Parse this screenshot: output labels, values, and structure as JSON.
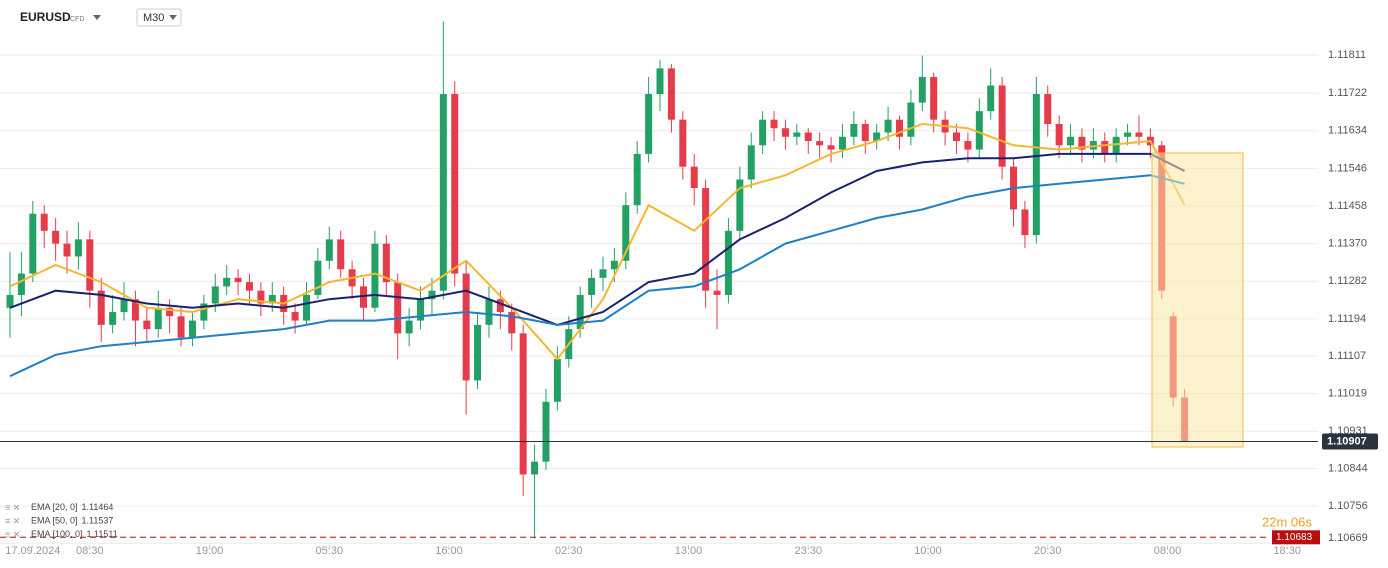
{
  "chart_data": {
    "type": "candlestick",
    "symbol": "EURUSD",
    "instrument": "CFD",
    "timeframe": "M30",
    "ylim": [
      1.10665,
      1.1194
    ],
    "xlim": [
      -0.877,
      114.7
    ],
    "yticks": [
      {
        "value": 1.10669,
        "label": "1.10669"
      },
      1.10756,
      1.10844,
      {
        "value": 1.10931,
        "label": "1.10931"
      },
      1.11019,
      1.11107,
      1.11194,
      1.11282,
      {
        "value": 1.1137,
        "label": "1.11370"
      },
      1.11458,
      1.11546,
      1.11634,
      1.11722,
      1.11811
    ],
    "xticks": [
      {
        "value": 2,
        "label": "17.09.2024"
      },
      {
        "value": 7,
        "label": "08:30"
      },
      {
        "value": 17.5,
        "label": "19:00"
      },
      {
        "value": 28,
        "label": "05:30"
      },
      {
        "value": 38.5,
        "label": "16:00"
      },
      {
        "value": 49,
        "label": "02:30"
      },
      {
        "value": 59.5,
        "label": "13:00"
      },
      {
        "value": 70,
        "label": "23:30"
      },
      {
        "value": 80.5,
        "label": "10:00"
      },
      {
        "value": 91,
        "label": "20:30"
      },
      {
        "value": 101.5,
        "label": "08:00"
      },
      {
        "value": 112,
        "label": "18:30"
      }
    ],
    "grid": true,
    "up_color": "#23a064",
    "down_color": "#e53b4b",
    "candles": [
      [
        1.1122,
        1.1135,
        1.1115,
        1.1125
      ],
      [
        1.1125,
        1.1135,
        1.112,
        1.113
      ],
      [
        1.113,
        1.1147,
        1.1128,
        1.1144
      ],
      [
        1.1144,
        1.1146,
        1.1136,
        1.114
      ],
      [
        1.114,
        1.1143,
        1.1133,
        1.1137
      ],
      [
        1.1137,
        1.114,
        1.113,
        1.1134
      ],
      [
        1.1134,
        1.1142,
        1.1131,
        1.1138
      ],
      [
        1.1138,
        1.114,
        1.1122,
        1.1126
      ],
      [
        1.1126,
        1.1129,
        1.1114,
        1.1118
      ],
      [
        1.1118,
        1.1125,
        1.1116,
        1.1121
      ],
      [
        1.1121,
        1.1128,
        1.1119,
        1.1124
      ],
      [
        1.1124,
        1.1126,
        1.1113,
        1.1119
      ],
      [
        1.1119,
        1.1122,
        1.1114,
        1.1117
      ],
      [
        1.1117,
        1.1126,
        1.1115,
        1.1122
      ],
      [
        1.1122,
        1.1124,
        1.1116,
        1.112
      ],
      [
        1.112,
        1.1122,
        1.1113,
        1.1115
      ],
      [
        1.1115,
        1.1121,
        1.1113,
        1.1119
      ],
      [
        1.1119,
        1.1125,
        1.1117,
        1.1123
      ],
      [
        1.1123,
        1.113,
        1.1121,
        1.1127
      ],
      [
        1.1127,
        1.1132,
        1.1125,
        1.1129
      ],
      [
        1.1129,
        1.1131,
        1.1125,
        1.1128
      ],
      [
        1.1128,
        1.113,
        1.1123,
        1.1126
      ],
      [
        1.1126,
        1.1128,
        1.112,
        1.1123
      ],
      [
        1.1123,
        1.1128,
        1.1121,
        1.1125
      ],
      [
        1.1125,
        1.1127,
        1.1118,
        1.1121
      ],
      [
        1.1121,
        1.1123,
        1.1116,
        1.1119
      ],
      [
        1.1119,
        1.1128,
        1.1118,
        1.1125
      ],
      [
        1.1125,
        1.1136,
        1.1124,
        1.1133
      ],
      [
        1.1133,
        1.1141,
        1.1131,
        1.1138
      ],
      [
        1.1138,
        1.114,
        1.1129,
        1.1131
      ],
      [
        1.1131,
        1.1133,
        1.1124,
        1.1127
      ],
      [
        1.1127,
        1.1129,
        1.1119,
        1.1122
      ],
      [
        1.1122,
        1.114,
        1.1121,
        1.1137
      ],
      [
        1.1137,
        1.1139,
        1.1125,
        1.1128
      ],
      [
        1.1128,
        1.113,
        1.111,
        1.1116
      ],
      [
        1.1116,
        1.1122,
        1.1113,
        1.1119
      ],
      [
        1.1119,
        1.1127,
        1.1117,
        1.1124
      ],
      [
        1.1124,
        1.1129,
        1.112,
        1.1126
      ],
      [
        1.1126,
        1.1189,
        1.1124,
        1.1172
      ],
      [
        1.1172,
        1.1175,
        1.1127,
        1.113
      ],
      [
        1.113,
        1.1133,
        1.1097,
        1.1105
      ],
      [
        1.1105,
        1.1121,
        1.1103,
        1.1118
      ],
      [
        1.1118,
        1.1127,
        1.1115,
        1.1124
      ],
      [
        1.1124,
        1.1126,
        1.1117,
        1.1121
      ],
      [
        1.1121,
        1.1123,
        1.1112,
        1.1116
      ],
      [
        1.1116,
        1.1118,
        1.1078,
        1.1083
      ],
      [
        1.1083,
        1.109,
        1.1068,
        1.1086
      ],
      [
        1.1086,
        1.1103,
        1.1084,
        1.11
      ],
      [
        1.11,
        1.1113,
        1.1098,
        1.111
      ],
      [
        1.111,
        1.112,
        1.1108,
        1.1117
      ],
      [
        1.1117,
        1.1127,
        1.1115,
        1.1125
      ],
      [
        1.1125,
        1.1131,
        1.1122,
        1.1129
      ],
      [
        1.1129,
        1.1134,
        1.1126,
        1.1131
      ],
      [
        1.1131,
        1.1136,
        1.1128,
        1.1133
      ],
      [
        1.1133,
        1.1149,
        1.1131,
        1.1146
      ],
      [
        1.1146,
        1.1161,
        1.1144,
        1.1158
      ],
      [
        1.1158,
        1.1176,
        1.1156,
        1.1172
      ],
      [
        1.1172,
        1.118,
        1.1168,
        1.1178
      ],
      [
        1.1178,
        1.1179,
        1.1163,
        1.1166
      ],
      [
        1.1166,
        1.1168,
        1.1152,
        1.1155
      ],
      [
        1.1155,
        1.1158,
        1.1146,
        1.115
      ],
      [
        1.115,
        1.1152,
        1.1122,
        1.1126
      ],
      [
        1.1126,
        1.1131,
        1.1117,
        1.1125
      ],
      [
        1.1125,
        1.1143,
        1.1123,
        1.114
      ],
      [
        1.114,
        1.1155,
        1.1138,
        1.1152
      ],
      [
        1.1152,
        1.1163,
        1.115,
        1.116
      ],
      [
        1.116,
        1.1168,
        1.1158,
        1.1166
      ],
      [
        1.1166,
        1.1168,
        1.1161,
        1.1164
      ],
      [
        1.1164,
        1.1166,
        1.1159,
        1.1162
      ],
      [
        1.1162,
        1.1165,
        1.116,
        1.1163
      ],
      [
        1.1163,
        1.1164,
        1.1158,
        1.1161
      ],
      [
        1.1161,
        1.1163,
        1.1157,
        1.116
      ],
      [
        1.116,
        1.1162,
        1.1156,
        1.1159
      ],
      [
        1.1159,
        1.1165,
        1.1157,
        1.1162
      ],
      [
        1.1162,
        1.1168,
        1.116,
        1.1165
      ],
      [
        1.1165,
        1.1166,
        1.1158,
        1.1161
      ],
      [
        1.1161,
        1.1165,
        1.1159,
        1.1163
      ],
      [
        1.1163,
        1.1169,
        1.1161,
        1.1166
      ],
      [
        1.1166,
        1.1167,
        1.1159,
        1.1162
      ],
      [
        1.1162,
        1.1173,
        1.116,
        1.117
      ],
      [
        1.117,
        1.1181,
        1.1168,
        1.1176
      ],
      [
        1.1176,
        1.1177,
        1.1163,
        1.1166
      ],
      [
        1.1166,
        1.1168,
        1.116,
        1.1163
      ],
      [
        1.1163,
        1.1165,
        1.1158,
        1.1161
      ],
      [
        1.1161,
        1.1163,
        1.1156,
        1.1159
      ],
      [
        1.1159,
        1.1171,
        1.1157,
        1.1168
      ],
      [
        1.1168,
        1.1178,
        1.1166,
        1.1174
      ],
      [
        1.1174,
        1.1176,
        1.1152,
        1.1155
      ],
      [
        1.1155,
        1.1157,
        1.1141,
        1.1145
      ],
      [
        1.1145,
        1.1147,
        1.1136,
        1.1139
      ],
      [
        1.1139,
        1.1176,
        1.1137,
        1.1172
      ],
      [
        1.1172,
        1.1174,
        1.1162,
        1.1165
      ],
      [
        1.1165,
        1.1167,
        1.1157,
        1.116
      ],
      [
        1.116,
        1.1165,
        1.1158,
        1.1162
      ],
      [
        1.1162,
        1.1164,
        1.1156,
        1.1159
      ],
      [
        1.1159,
        1.1164,
        1.1157,
        1.1161
      ],
      [
        1.1161,
        1.1163,
        1.1156,
        1.1158
      ],
      [
        1.1158,
        1.1164,
        1.1156,
        1.1162
      ],
      [
        1.1162,
        1.1165,
        1.116,
        1.1163
      ],
      [
        1.1163,
        1.1167,
        1.116,
        1.1162
      ],
      [
        1.1162,
        1.1164,
        1.1157,
        1.116
      ],
      [
        1.116,
        1.1161,
        1.1124,
        1.1126
      ],
      [
        1.112,
        1.1121,
        1.1099,
        1.1101
      ],
      [
        1.1101,
        1.1103,
        1.10905,
        1.10907
      ]
    ],
    "ema_x": [
      0,
      4,
      8,
      12,
      16,
      20,
      24,
      28,
      32,
      36,
      40,
      44,
      48,
      52,
      56,
      60,
      64,
      68,
      72,
      76,
      80,
      84,
      88,
      92,
      96,
      100,
      103
    ],
    "series": [
      {
        "name": "EMA [20, 0]",
        "color": "#f5b731",
        "last_value": 1.11464,
        "values": [
          1.1127,
          1.1132,
          1.1128,
          1.1122,
          1.1121,
          1.1124,
          1.1123,
          1.1128,
          1.113,
          1.1126,
          1.1133,
          1.1122,
          1.111,
          1.1124,
          1.1146,
          1.114,
          1.115,
          1.1153,
          1.1158,
          1.1161,
          1.1165,
          1.1164,
          1.116,
          1.1159,
          1.116,
          1.1161,
          1.1146
        ]
      },
      {
        "name": "EMA [50, 0]",
        "color": "#1a2270",
        "last_value": 1.11537,
        "values": [
          1.1122,
          1.1126,
          1.1125,
          1.1123,
          1.1122,
          1.1123,
          1.1122,
          1.1124,
          1.1125,
          1.1124,
          1.1126,
          1.1122,
          1.1118,
          1.1121,
          1.1128,
          1.113,
          1.1138,
          1.1143,
          1.1149,
          1.1154,
          1.1156,
          1.1157,
          1.1157,
          1.1158,
          1.1158,
          1.1158,
          1.1154
        ]
      },
      {
        "name": "EMA [100, 0]",
        "color": "#1f7fc7",
        "last_value": 1.11511,
        "values": [
          1.1106,
          1.1111,
          1.1113,
          1.1114,
          1.1115,
          1.1116,
          1.1117,
          1.1119,
          1.1119,
          1.112,
          1.1121,
          1.112,
          1.1118,
          1.1119,
          1.1126,
          1.1127,
          1.1131,
          1.1137,
          1.114,
          1.1143,
          1.1145,
          1.1148,
          1.115,
          1.1151,
          1.1152,
          1.1153,
          1.1151
        ]
      }
    ],
    "last_price": 1.10907,
    "low_line": 1.10683,
    "timer": "22m 06s"
  }
}
